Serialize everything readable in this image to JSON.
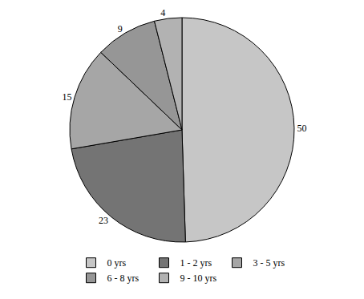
{
  "chart_data": {
    "type": "pie",
    "categories": [
      "0 yrs",
      "1 - 2 yrs",
      "3 - 5 yrs",
      "6 - 8 yrs",
      "9 - 10 yrs"
    ],
    "values": [
      50,
      23,
      15,
      9,
      4
    ],
    "colors": [
      "#c6c6c6",
      "#747474",
      "#a6a6a6",
      "#969696",
      "#b2b2b2"
    ],
    "data_labels": true,
    "legend": "bottom"
  }
}
